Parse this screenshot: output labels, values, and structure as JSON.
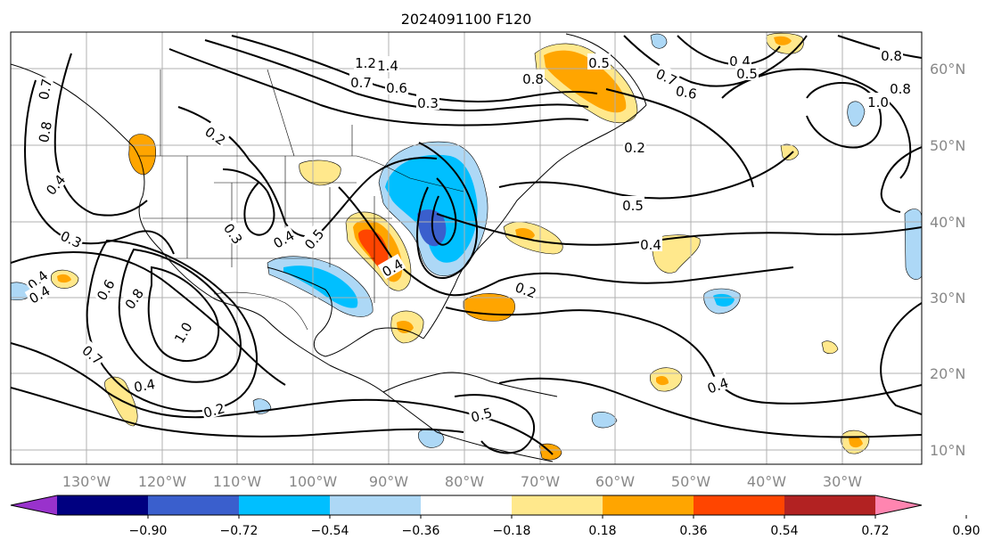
{
  "title": "2024091100 F120",
  "map": {
    "longitudes": [
      "130°W",
      "120°W",
      "110°W",
      "100°W",
      "90°W",
      "80°W",
      "70°W",
      "60°W",
      "50°W",
      "40°W",
      "30°W"
    ],
    "latitudes": [
      "60°N",
      "50°N",
      "40°N",
      "30°N",
      "20°N",
      "10°N"
    ],
    "contour_labels": [
      "1.2",
      "1.4",
      "0.7",
      "0.6",
      "0.3",
      "0.8",
      "0.5",
      "0.7",
      "0.6",
      "0.4",
      "0.5",
      "0.8",
      "0.8",
      "1.0",
      "0.7",
      "0.8",
      "0.2",
      "0.3",
      "0.4",
      "0.5",
      "0.4",
      "0.3",
      "0.4",
      "0.2",
      "0.4",
      "0.5",
      "0.4",
      "0.6",
      "0.8",
      "1.0",
      "0.7",
      "0.4",
      "0.2",
      "0.5",
      "0.4",
      "0.4",
      "0.2"
    ],
    "line_color": "#000000",
    "grid_color": "#b0b0b0"
  },
  "colorbar": {
    "ticks": [
      "−0.90",
      "−0.72",
      "−0.54",
      "−0.36",
      "−0.18",
      "0.18",
      "0.36",
      "0.54",
      "0.72",
      "0.90"
    ],
    "colors": [
      "#9932cc",
      "#000080",
      "#3a5fcd",
      "#00bfff",
      "#add8f6",
      "#ffffff",
      "#ffe88c",
      "#ffa500",
      "#ff4500",
      "#b22222",
      "#ff85b0"
    ]
  }
}
